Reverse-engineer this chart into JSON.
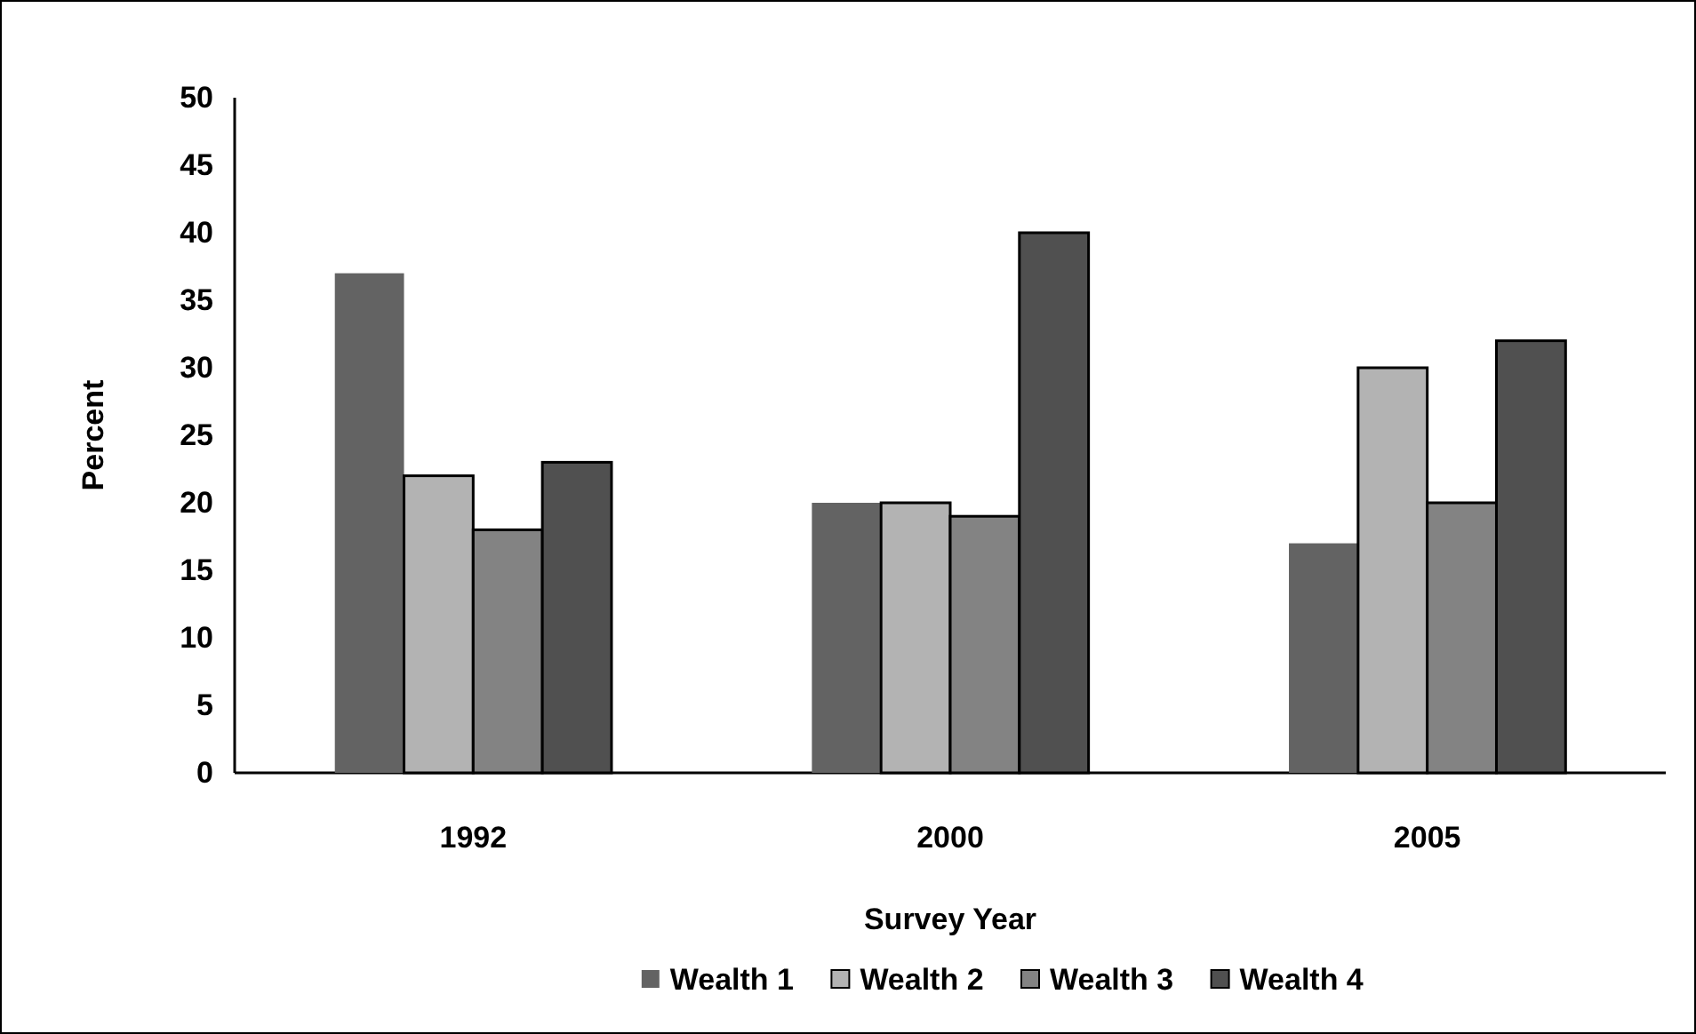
{
  "chart_data": {
    "type": "bar",
    "xlabel": "Survey Year",
    "ylabel": "Percent",
    "categories": [
      "1992",
      "2000",
      "2005"
    ],
    "series": [
      {
        "name": "Wealth 1",
        "color": "#636363",
        "values": [
          37,
          20,
          17
        ]
      },
      {
        "name": "Wealth 2",
        "color": "#b3b3b3",
        "values": [
          22,
          20,
          30
        ]
      },
      {
        "name": "Wealth 3",
        "color": "#838383",
        "values": [
          18,
          19,
          20
        ]
      },
      {
        "name": "Wealth 4",
        "color": "#505050",
        "values": [
          23,
          40,
          32
        ]
      }
    ],
    "ylim": [
      0,
      50
    ],
    "yticks": [
      0,
      5,
      10,
      15,
      20,
      25,
      30,
      35,
      40,
      45,
      50
    ],
    "grid": false,
    "legend": "bottom"
  }
}
